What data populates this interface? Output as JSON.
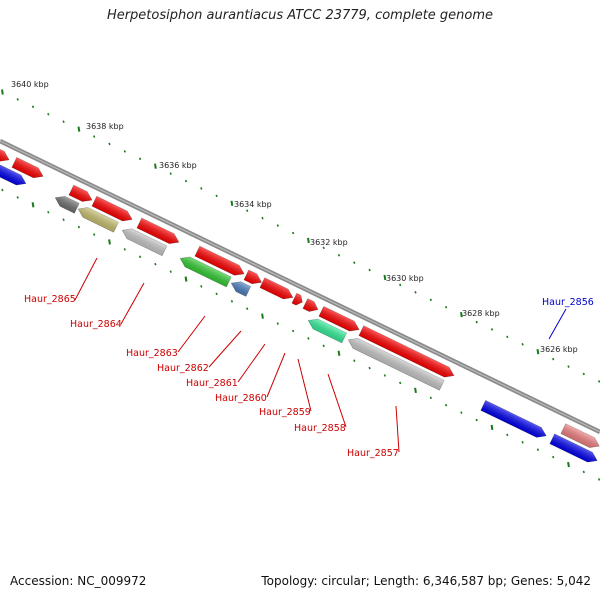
{
  "title": "Herpetosiphon aurantiacus ATCC 23779, complete genome",
  "footer": {
    "accession": "Accession: NC_009972",
    "summary": "Topology: circular; Length: 6,346,587 bp; Genes: 5,042"
  },
  "scale_labels": [
    "3640 kbp",
    "3638 kbp",
    "3636 kbp",
    "3634 kbp",
    "3632 kbp",
    "3630 kbp",
    "3628 kbp",
    "3626 kbp"
  ],
  "gene_labels": [
    {
      "name": "Haur_2865",
      "color": "#cc0000"
    },
    {
      "name": "Haur_2864",
      "color": "#cc0000"
    },
    {
      "name": "Haur_2863",
      "color": "#cc0000"
    },
    {
      "name": "Haur_2862",
      "color": "#cc0000"
    },
    {
      "name": "Haur_2861",
      "color": "#cc0000"
    },
    {
      "name": "Haur_2860",
      "color": "#cc0000"
    },
    {
      "name": "Haur_2859",
      "color": "#cc0000"
    },
    {
      "name": "Haur_2858",
      "color": "#cc0000"
    },
    {
      "name": "Haur_2857",
      "color": "#cc0000"
    },
    {
      "name": "Haur_2856",
      "color": "#0000cc"
    }
  ],
  "colors": {
    "backbone": "#8a8a8a",
    "tick": "#1a7a1a",
    "red": "#ff0000",
    "blue": "#0000ee",
    "grey": "#c8c8c8",
    "dark_grey": "#707070",
    "olive": "#c8c070",
    "green": "#33cc33",
    "steel_blue": "#4a80c0",
    "teal": "#33ee99",
    "pink": "#f08080"
  }
}
